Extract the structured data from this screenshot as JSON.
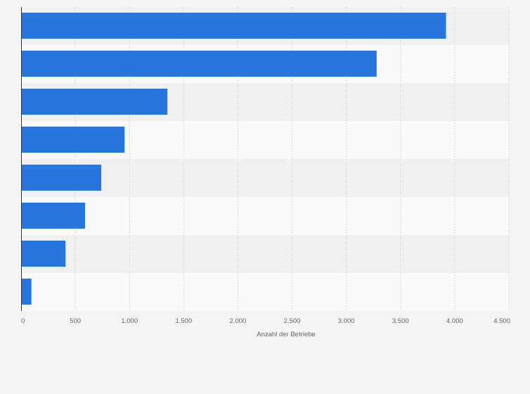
{
  "chart_data": {
    "type": "bar",
    "orientation": "horizontal",
    "categories": [
      "",
      "",
      "",
      "",
      "",
      "",
      "",
      ""
    ],
    "values": [
      3920,
      3280,
      1350,
      955,
      740,
      590,
      410,
      95
    ],
    "title": "",
    "xlabel": "Anzahl der Betriebe",
    "ylabel": "",
    "xlim": [
      0,
      4500
    ],
    "x_ticks": [
      0,
      500,
      1000,
      1500,
      2000,
      2500,
      3000,
      3500,
      4000,
      4500
    ],
    "x_tick_labels": [
      "0",
      "500",
      "1.000",
      "1.500",
      "2.000",
      "2.500",
      "3.000",
      "3.500",
      "4.000",
      "4.500"
    ],
    "grid": true,
    "colors": {
      "bar": "#2876dd",
      "band_dark": "#f0f0f0",
      "band_light": "#f9f9f9",
      "grid": "#d9d9d9",
      "axis": "#333333",
      "text": "#666666"
    }
  }
}
